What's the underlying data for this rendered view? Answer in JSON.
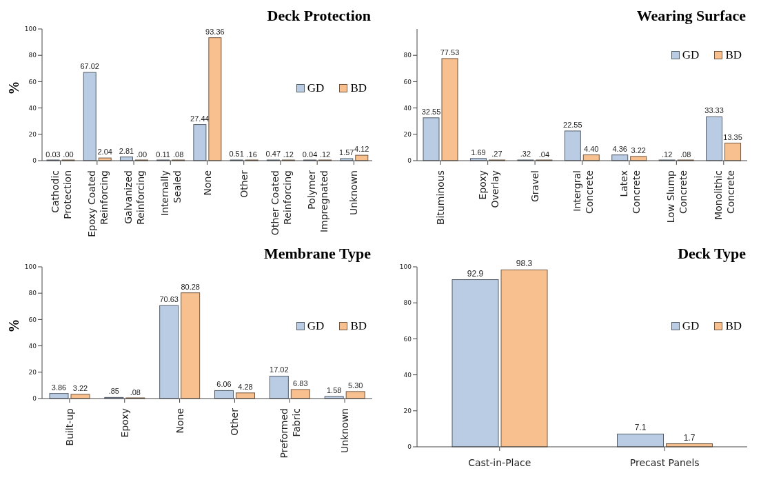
{
  "chart_data": [
    {
      "type": "bar",
      "title": "Deck Protection",
      "ylabel": "%",
      "categories": [
        "Cathodic Protection",
        "Epoxy Coated Reinforcing",
        "Galvanized Reinforcing",
        "Internally Sealed",
        "None",
        "Other",
        "Other Coated Reinforcing",
        "Polymer Impregnated",
        "Unknown"
      ],
      "series": [
        {
          "name": "GD",
          "color": "#b9cce4",
          "values": [
            0.03,
            67.02,
            2.81,
            0.11,
            27.44,
            0.51,
            0.47,
            0.04,
            1.57
          ],
          "value_labels": [
            "0.03",
            "67.02",
            "2.81",
            "0.11",
            "27.44",
            "0.51",
            "0.47",
            "0.04",
            "1.57"
          ]
        },
        {
          "name": "BD",
          "color": "#f9c08f",
          "values": [
            0,
            2.04,
            0,
            0.08,
            93.36,
            0.16,
            0.12,
            0.12,
            4.12
          ],
          "value_labels": [
            ".00",
            "2.04",
            ".00",
            ".08",
            "93.36",
            ".16",
            ".12",
            ".12",
            "4.12"
          ]
        }
      ],
      "ylim": [
        0,
        100
      ],
      "yticks": [
        0,
        20,
        40,
        60,
        80,
        100
      ],
      "legend": "right"
    },
    {
      "type": "bar",
      "title": "Wearing Surface",
      "categories": [
        "Bituminous",
        "Epoxy Overlay",
        "Gravel",
        "Intergral Concrete",
        "Latex Concrete",
        "Low Slump Concrete",
        "Monolithic Concrete"
      ],
      "series": [
        {
          "name": "GD",
          "color": "#b9cce4",
          "values": [
            32.55,
            1.69,
            0.32,
            22.55,
            4.36,
            0.12,
            33.33
          ],
          "value_labels": [
            "32.55",
            "1.69",
            ".32",
            "22.55",
            "4.36",
            ".12",
            "33.33"
          ]
        },
        {
          "name": "BD",
          "color": "#f9c08f",
          "values": [
            77.53,
            0.27,
            0.04,
            4.4,
            3.22,
            0.08,
            13.35
          ],
          "value_labels": [
            "77.53",
            ".27",
            ".04",
            "4.40",
            "3.22",
            ".08",
            "13.35"
          ]
        }
      ],
      "ylim": [
        0,
        100
      ],
      "yticks": [
        0,
        20,
        40,
        60,
        80
      ],
      "legend": "top right"
    },
    {
      "type": "bar",
      "title": "Membrane Type",
      "ylabel": "%",
      "categories": [
        "Built-up",
        "Epoxy",
        "None",
        "Other",
        "Preformed Fabric",
        "Unknown"
      ],
      "series": [
        {
          "name": "GD",
          "color": "#b9cce4",
          "values": [
            3.86,
            0.85,
            70.63,
            6.06,
            17.02,
            1.58
          ],
          "value_labels": [
            "3.86",
            ".85",
            "70.63",
            "6.06",
            "17.02",
            "1.58"
          ]
        },
        {
          "name": "BD",
          "color": "#f9c08f",
          "values": [
            3.22,
            0.08,
            80.28,
            4.28,
            6.83,
            5.3
          ],
          "value_labels": [
            "3.22",
            ".08",
            "80.28",
            "4.28",
            "6.83",
            "5.30"
          ]
        }
      ],
      "ylim": [
        0,
        100
      ],
      "yticks": [
        0,
        20,
        40,
        60,
        80,
        100
      ],
      "legend": "right"
    },
    {
      "type": "bar",
      "title": "Deck Type",
      "categories": [
        "Cast-in-Place",
        "Precast Panels"
      ],
      "series": [
        {
          "name": "GD",
          "color": "#b9cce4",
          "values": [
            92.9,
            7.1
          ],
          "value_labels": [
            "92.9",
            "7.1"
          ]
        },
        {
          "name": "BD",
          "color": "#f9c08f",
          "values": [
            98.3,
            1.7
          ],
          "value_labels": [
            "98.3",
            "1.7"
          ]
        }
      ],
      "ylim": [
        0,
        100
      ],
      "yticks": [
        0,
        20,
        40,
        60,
        80,
        100
      ],
      "legend": "right"
    }
  ]
}
